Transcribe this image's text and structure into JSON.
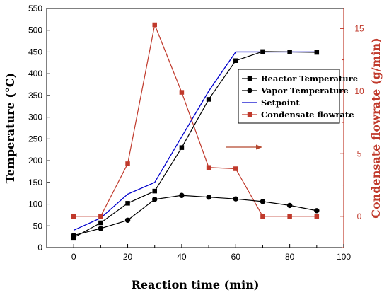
{
  "chart_data": {
    "type": "line",
    "xlabel": "Reaction time (min)",
    "ylabel": "Temperature (°C)",
    "y2label": "Condensate flowrate (g/min)",
    "xlim": [
      -10,
      100
    ],
    "ylim": [
      0,
      550
    ],
    "y2lim": [
      -2.5,
      16.6
    ],
    "xticks": [
      0,
      20,
      40,
      60,
      80,
      100
    ],
    "yticks": [
      0,
      50,
      100,
      150,
      200,
      250,
      300,
      350,
      400,
      450,
      500,
      550
    ],
    "y2ticks": [
      0,
      5,
      10,
      15
    ],
    "legend_position": "center-right",
    "annotation": "arrow pointing right toward the right axis",
    "series": [
      {
        "name": "Reactor Temperature",
        "axis": "left",
        "color": "#000000",
        "marker": "square",
        "x": [
          0,
          10,
          20,
          30,
          40,
          50,
          60,
          70,
          80,
          90
        ],
        "y": [
          23,
          57,
          102,
          130,
          230,
          341,
          430,
          451,
          450,
          449
        ]
      },
      {
        "name": "Vapor Temperature",
        "axis": "left",
        "color": "#000000",
        "marker": "circle",
        "x": [
          0,
          10,
          20,
          30,
          40,
          50,
          60,
          70,
          80,
          90
        ],
        "y": [
          28,
          44,
          63,
          111,
          120,
          116,
          112,
          106,
          97,
          85
        ]
      },
      {
        "name": "Setpoint",
        "axis": "left",
        "color": "#0000cc",
        "marker": "none",
        "x": [
          0,
          10,
          20,
          30,
          40,
          50,
          60,
          70,
          80,
          90
        ],
        "y": [
          40,
          68,
          123,
          150,
          255,
          360,
          450,
          450,
          450,
          450
        ]
      },
      {
        "name": "Condensate flowrate",
        "axis": "right",
        "color": "#c0392b",
        "marker": "square",
        "x": [
          0,
          10,
          20,
          30,
          40,
          50,
          60,
          70,
          80,
          90
        ],
        "y": [
          0,
          0,
          4.2,
          15.3,
          9.9,
          3.9,
          3.8,
          0,
          0,
          0
        ]
      }
    ]
  }
}
